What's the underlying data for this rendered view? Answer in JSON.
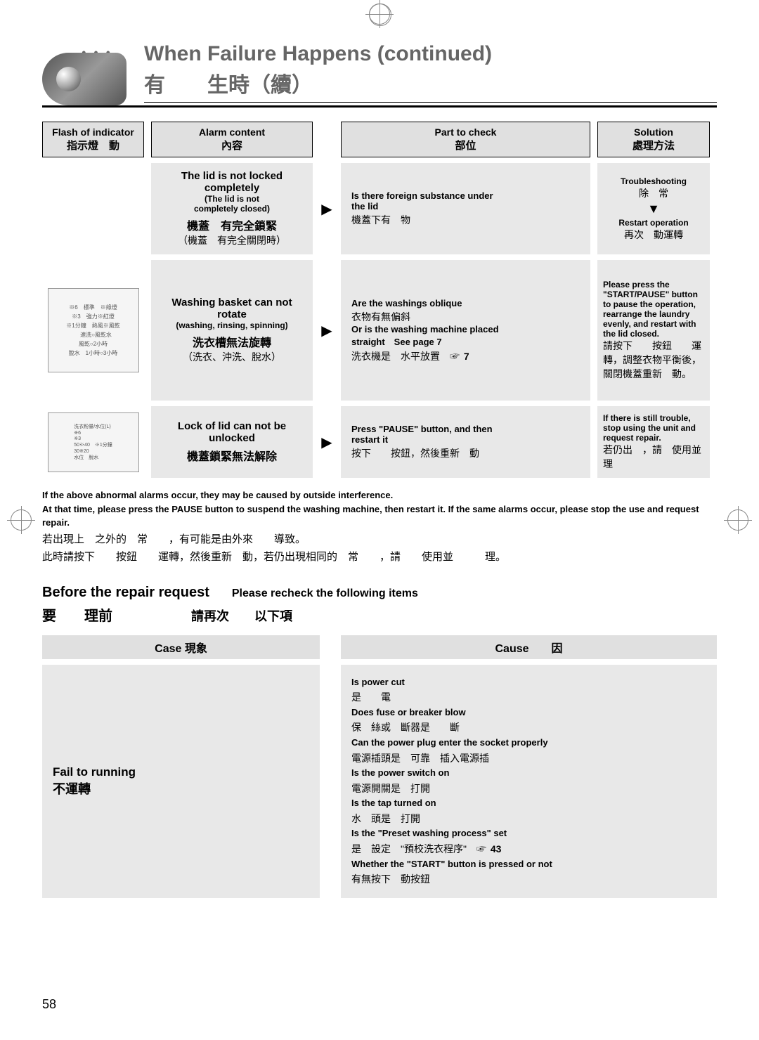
{
  "header": {
    "title_en": "When Failure Happens (continued)",
    "title_zh_1": "有",
    "title_zh_2": "生時（續）"
  },
  "table_headers": {
    "col1_en": "Flash of indicator",
    "col1_zh": "指示燈　動",
    "col2_en": "Alarm content",
    "col2_zh": "內容",
    "col3_en": "Part to check",
    "col3_zh": "部位",
    "col4_en": "Solution",
    "col4_zh": "處理方法"
  },
  "rows": [
    {
      "alarm_en_bold": "The lid is not locked completely",
      "alarm_en_normal1": "(The lid is not",
      "alarm_en_normal2": "completely closed)",
      "alarm_zh_bold": "機蓋　有完全鎖緊",
      "alarm_zh_normal": "（機蓋　有完全關閉時）",
      "check_en1": "Is there foreign substance under",
      "check_en2": "the lid",
      "check_zh": "機蓋下有　物",
      "solution_en1": "Troubleshooting",
      "solution_zh1": "除　常",
      "solution_en2": "Restart operation",
      "solution_zh2": "再次　動運轉"
    },
    {
      "alarm_en_bold": "Washing basket can not rotate",
      "alarm_en_normal1": "(washing, rinsing, spinning)",
      "alarm_zh_bold": "洗衣槽無法旋轉",
      "alarm_zh_normal": "（洗衣、沖洗、脫水）",
      "check_en1": "Are the washings oblique",
      "check_zh1": "衣物有無偏斜",
      "check_en2": "Or is the washing machine placed",
      "check_en3": "straight　See page 7",
      "check_zh2": "洗衣機是　水平放置",
      "check_ref": "7",
      "solution_en": "Please press the \"START/PAUSE\" button to pause the operation, rearrange the laundry evenly, and restart with the lid closed.",
      "solution_zh": "請按下　　按鈕　　運轉，調整衣物平衡後，關閉機蓋重新　動。"
    },
    {
      "alarm_en_bold": "Lock of lid can not be unlocked",
      "alarm_zh_bold": "機蓋鎖緊無法解除",
      "check_en1": "Press \"PAUSE\" button, and then",
      "check_en2": "restart it",
      "check_zh": "按下　　按鈕，然後重新　動",
      "solution_en": "If there is still trouble, stop using the unit and request repair.",
      "solution_zh": "若仍出　，請　使用並　　理"
    }
  ],
  "note": {
    "en1": "If the above abnormal alarms occur, they may be caused by outside interference.",
    "en2": "At that time, please press the PAUSE button to suspend the washing machine, then restart it. If the same alarms occur, please stop the use and request repair.",
    "zh1": "若出現上　之外的　常　　，有可能是由外來　　導致。",
    "zh2": "此時請按下　　按鈕　　運轉，然後重新　動，若仍出現相同的　常　　，請　　使用並　　　理。"
  },
  "before": {
    "title_en1": "Before the repair request",
    "title_en2": "Please recheck the following items",
    "title_zh1": "要　　理前",
    "title_zh2": "請再次　　以下項",
    "header1": "Case 現象",
    "header2": "Cause　　因",
    "case_en": "Fail to running",
    "case_zh": "不運轉",
    "causes": [
      {
        "en": "Is power cut",
        "zh": "是　　電"
      },
      {
        "en": "Does fuse or breaker blow",
        "zh": "保　絲或　斷器是　　斷"
      },
      {
        "en": "Can the power plug enter the socket properly",
        "zh": "電源插頭是　可靠　插入電源插"
      },
      {
        "en": "Is the power switch on",
        "zh": "電源開關是　打開"
      },
      {
        "en": "Is the tap turned on",
        "zh": "水　頭是　打開"
      },
      {
        "en": "Is the \"Preset washing process\" set",
        "zh": "是　設定　\"預校洗衣程序\"",
        "ref": "43"
      },
      {
        "en": "Whether the \"START\" button is pressed or not",
        "zh": "有無按下　動按鈕"
      }
    ]
  },
  "page_num": "58",
  "arrow": "▶",
  "down_arrow": "▼",
  "hand": "☞"
}
